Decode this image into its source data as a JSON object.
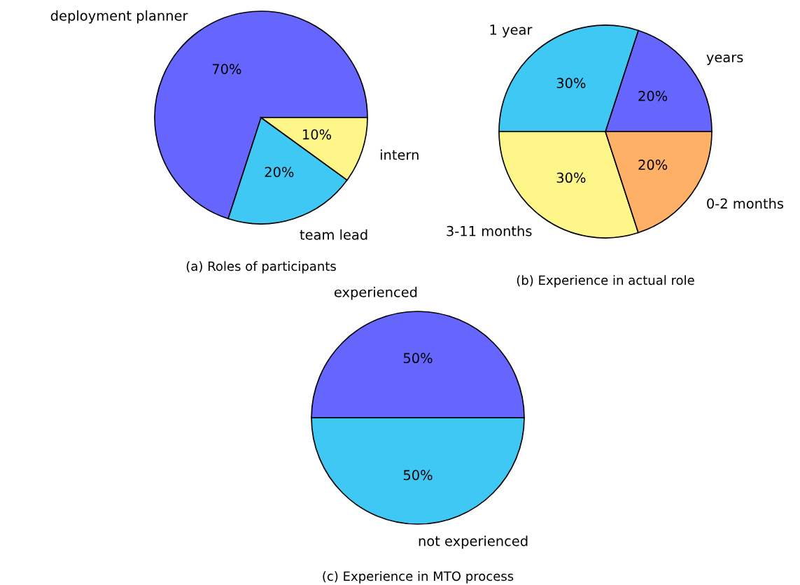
{
  "chart_data": [
    {
      "type": "pie",
      "title": "(a) Roles of participants",
      "categories": [
        "deployment planner",
        "team lead",
        "intern"
      ],
      "values": [
        70,
        20,
        10
      ],
      "colors": [
        "#6666ff",
        "#40c8f4",
        "#fff68a"
      ],
      "value_labels": [
        "70%",
        "20%",
        "10%"
      ]
    },
    {
      "type": "pie",
      "title": "(b) Experience in actual role",
      "categories": [
        "years",
        "1 year",
        "3-11 months",
        "0-2 months"
      ],
      "values": [
        20,
        30,
        30,
        20
      ],
      "colors": [
        "#6666ff",
        "#40c8f4",
        "#fff68a",
        "#ffb067"
      ],
      "value_labels": [
        "20%",
        "30%",
        "30%",
        "20%"
      ]
    },
    {
      "type": "pie",
      "title": "(c) Experience in MTO process",
      "categories": [
        "experienced",
        "not experienced"
      ],
      "values": [
        50,
        50
      ],
      "colors": [
        "#6666ff",
        "#40c8f4"
      ],
      "value_labels": [
        "50%",
        "50%"
      ]
    }
  ]
}
